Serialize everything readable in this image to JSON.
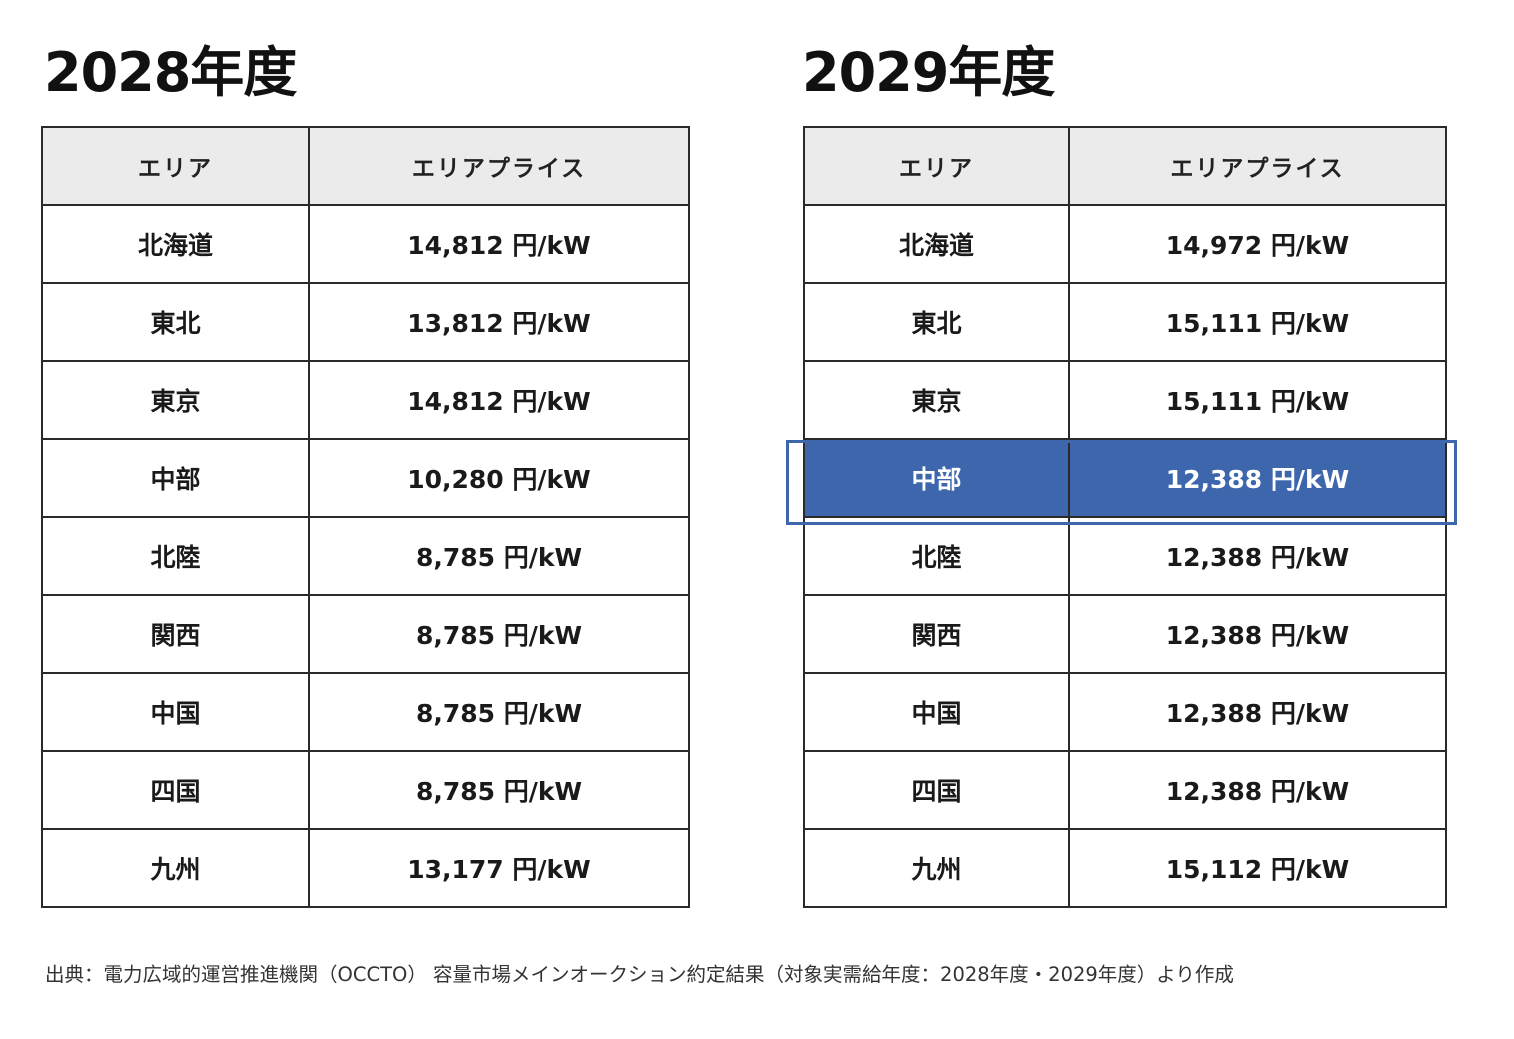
{
  "tables": [
    {
      "title": "2028年度",
      "headers": [
        "エリア",
        "エリアプライス"
      ],
      "rows": [
        {
          "area": "北海道",
          "price": "14,812 円/kW"
        },
        {
          "area": "東北",
          "price": "13,812 円/kW"
        },
        {
          "area": "東京",
          "price": "14,812 円/kW"
        },
        {
          "area": "中部",
          "price": "10,280 円/kW"
        },
        {
          "area": "北陸",
          "price": "8,785 円/kW"
        },
        {
          "area": "関西",
          "price": "8,785 円/kW"
        },
        {
          "area": "中国",
          "price": "8,785 円/kW"
        },
        {
          "area": "四国",
          "price": "8,785 円/kW"
        },
        {
          "area": "九州",
          "price": "13,177 円/kW"
        }
      ]
    },
    {
      "title": "2029年度",
      "headers": [
        "エリア",
        "エリアプライス"
      ],
      "highlighted_row": 3,
      "rows": [
        {
          "area": "北海道",
          "price": "14,972 円/kW"
        },
        {
          "area": "東北",
          "price": "15,111 円/kW"
        },
        {
          "area": "東京",
          "price": "15,111 円/kW"
        },
        {
          "area": "中部",
          "price": "12,388 円/kW"
        },
        {
          "area": "北陸",
          "price": "12,388 円/kW"
        },
        {
          "area": "関西",
          "price": "12,388 円/kW"
        },
        {
          "area": "中国",
          "price": "12,388 円/kW"
        },
        {
          "area": "四国",
          "price": "12,388 円/kW"
        },
        {
          "area": "九州",
          "price": "15,112 円/kW"
        }
      ]
    }
  ],
  "source": "出典：電力広域的運営推進機関（OCCTO） 容量市場メインオークション約定結果（対象実需給年度：2028年度・2029年度）より作成",
  "colors": {
    "highlight": "#3d66ad",
    "header_bg": "#ebebeb",
    "border": "#2a2a2a"
  }
}
